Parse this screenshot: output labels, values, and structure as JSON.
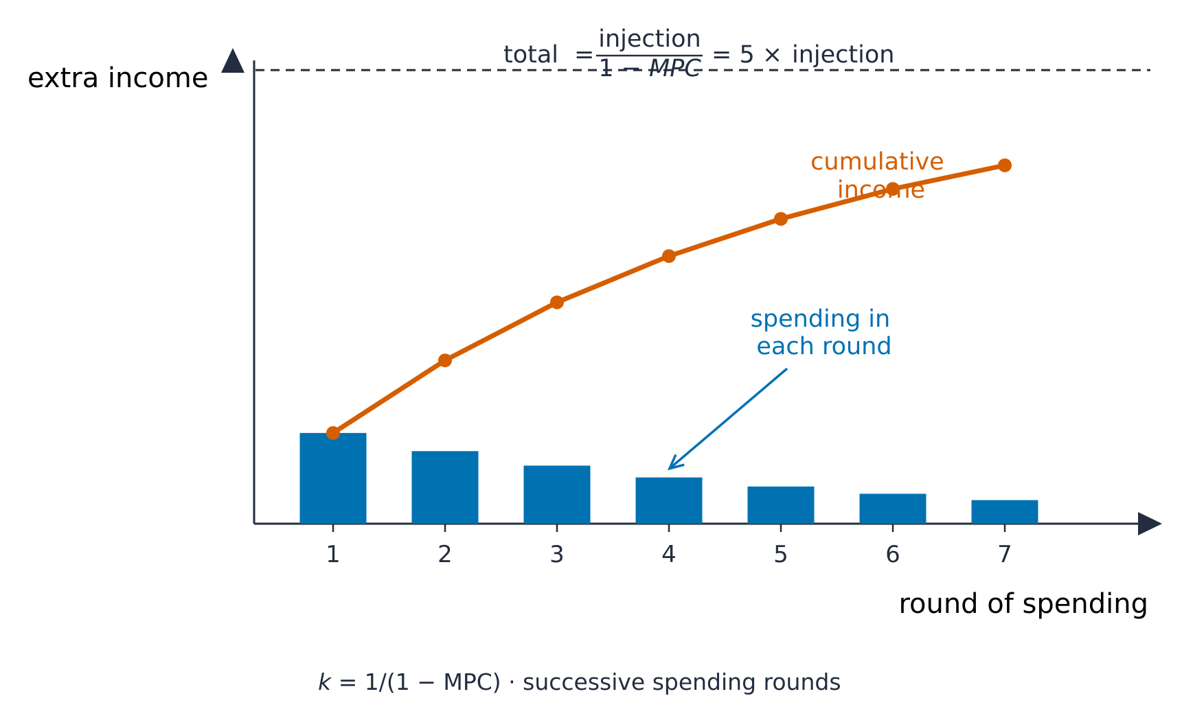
{
  "colors": {
    "axis": "#232d3f",
    "bars": "#0072b2",
    "line": "#d55e00",
    "text": "#232d3f"
  },
  "formula": {
    "lhs": "total",
    "eq1": "=",
    "numerator": "injection",
    "denominator_one": "1 − ",
    "denominator_mpc": "MPC",
    "eq2": "= 5 ×",
    "rhs": "injection"
  },
  "caption": {
    "k": "k",
    "rest": " = 1/(1 − MPC)  ·  successive spending rounds"
  },
  "chart_data": {
    "type": "bar",
    "xlabel": "round of spending",
    "ylabel": "extra income",
    "categories": [
      "1",
      "2",
      "3",
      "4",
      "5",
      "6",
      "7"
    ],
    "ylim": [
      0,
      5.5
    ],
    "grid": false,
    "series": [
      {
        "kind": "bar",
        "values": [
          1.0,
          0.8,
          0.64,
          0.51,
          0.41,
          0.33,
          0.26
        ]
      },
      {
        "kind": "line",
        "values": [
          1.0,
          1.8,
          2.44,
          2.95,
          3.36,
          3.69,
          3.95
        ]
      }
    ],
    "reference_line": {
      "value": 5.0,
      "style": "dashed"
    },
    "annotations": {
      "line_label": [
        "cumulative",
        "income"
      ],
      "bar_label": [
        "spending in",
        "each round"
      ],
      "arrow_target_category": "4"
    }
  }
}
